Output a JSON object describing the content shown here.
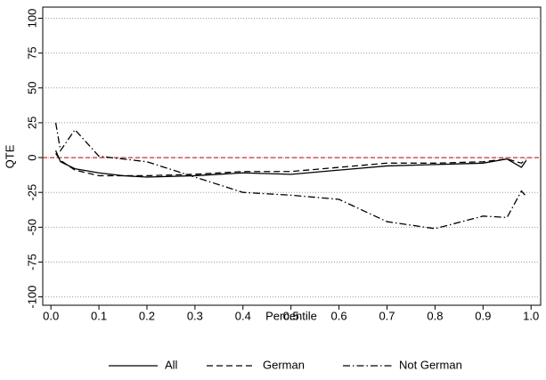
{
  "chart_data": {
    "type": "line",
    "x_label": "Percentile",
    "y_label": "QTE",
    "xlim": [
      -0.017,
      1.02
    ],
    "ylim": [
      -106,
      108
    ],
    "xticks": [
      {
        "value": 0,
        "label": "0.0"
      },
      0.1,
      0.2,
      0.3,
      0.4,
      0.5,
      0.6,
      0.7,
      0.8,
      0.9,
      {
        "value": 1,
        "label": "1.0"
      }
    ],
    "yticks": [
      -100,
      -75,
      -50,
      -25,
      0,
      25,
      50,
      75,
      100
    ],
    "grid": true,
    "reference_line": {
      "value": 0,
      "color": "#cc0000"
    },
    "legend": "bottom",
    "x": [
      0.01,
      0.02,
      0.05,
      0.1,
      0.15,
      0.2,
      0.3,
      0.4,
      0.5,
      0.6,
      0.7,
      0.8,
      0.9,
      0.95,
      0.98,
      0.99
    ],
    "series": [
      {
        "name": "All",
        "color": "#000000",
        "line_style": "solid",
        "values": [
          5,
          -3,
          -8,
          -11,
          -13,
          -14,
          -13,
          -11,
          -12,
          -9,
          -6,
          -5,
          -4,
          -1,
          -7,
          -2
        ]
      },
      {
        "name": "German",
        "color": "#000000",
        "line_style": "dashed",
        "values": [
          3,
          -2,
          -9,
          -13,
          -13,
          -13,
          -12,
          -10,
          -10,
          -7,
          -4,
          -4,
          -3,
          -1,
          -4,
          -1
        ]
      },
      {
        "name": "Not German",
        "color": "#000000",
        "line_style": "dashdot",
        "values": [
          25,
          5,
          20,
          1,
          -1,
          -3,
          -14,
          -25,
          -27,
          -30,
          -46,
          -51,
          -42,
          -43,
          -24,
          -28
        ]
      }
    ]
  }
}
